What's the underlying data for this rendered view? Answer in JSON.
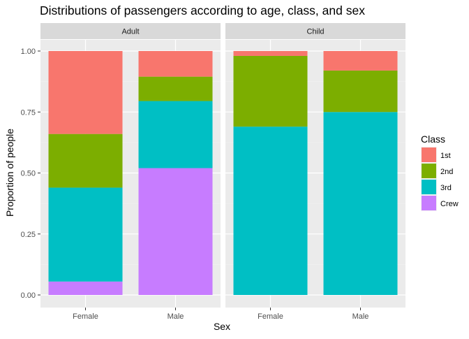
{
  "chart_data": {
    "type": "bar",
    "stacked": "proportion",
    "title": "Distributions of passengers according to age, class, and sex",
    "xlabel": "Sex",
    "ylabel": "Proportion of people",
    "ylim": [
      0,
      1
    ],
    "yticks": [
      "0.00",
      "0.25",
      "0.50",
      "0.75",
      "1.00"
    ],
    "grid": true,
    "legend": {
      "title": "Class",
      "position": "right"
    },
    "stack_order": [
      "Crew",
      "3rd",
      "2nd",
      "1st"
    ],
    "series": [
      {
        "name": "1st",
        "color": "#F8766D"
      },
      {
        "name": "2nd",
        "color": "#7CAE00"
      },
      {
        "name": "3rd",
        "color": "#00BFC4"
      },
      {
        "name": "Crew",
        "color": "#C77CFF"
      }
    ],
    "facets": [
      {
        "label": "Adult",
        "categories": [
          "Female",
          "Male"
        ],
        "values": {
          "Female": {
            "1st": 0.34,
            "2nd": 0.22,
            "3rd": 0.385,
            "Crew": 0.055
          },
          "Male": {
            "1st": 0.105,
            "2nd": 0.1,
            "3rd": 0.275,
            "Crew": 0.52
          }
        }
      },
      {
        "label": "Child",
        "categories": [
          "Female",
          "Male"
        ],
        "values": {
          "Female": {
            "1st": 0.02,
            "2nd": 0.29,
            "3rd": 0.69,
            "Crew": 0
          },
          "Male": {
            "1st": 0.08,
            "2nd": 0.17,
            "3rd": 0.75,
            "Crew": 0
          }
        }
      }
    ]
  }
}
